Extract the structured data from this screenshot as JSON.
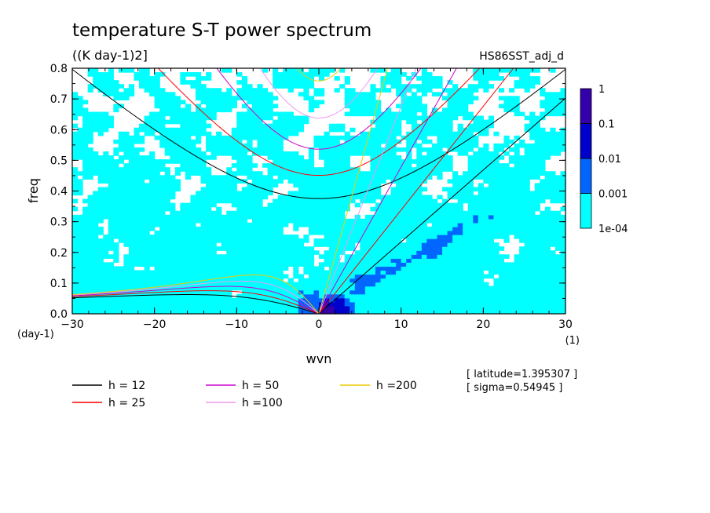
{
  "chart_data": {
    "type": "heatmap",
    "title": "temperature S-T power spectrum",
    "subtitle": "((K day-1)2]",
    "dataset_label": "HS86SST_adj_d",
    "xlabel": "wvn",
    "ylabel": "freq",
    "x_unit": "(1)",
    "y_unit": "(day-1)",
    "xlim": [
      -30,
      30
    ],
    "ylim": [
      0,
      0.8
    ],
    "xticks": [
      -30,
      -20,
      -10,
      0,
      10,
      20,
      30
    ],
    "yticks": [
      0,
      0.1,
      0.2,
      0.3,
      0.4,
      0.5,
      0.6,
      0.7,
      0.8
    ],
    "ytick_labels": [
      "0.0",
      "0.1",
      "0.2",
      "0.3",
      "0.4",
      "0.5",
      "0.6",
      "0.7",
      "0.8"
    ],
    "colorbar": {
      "levels": [
        "1e-04",
        "0.001",
        "0.01",
        "0.1",
        "1"
      ],
      "colors": [
        "#00ffff",
        "#0066ff",
        "#0000cc",
        "#3300aa"
      ]
    },
    "background_color": "#ffffff",
    "dispersion_curves": [
      {
        "label": "h = 12",
        "color": "#000000",
        "h": 12
      },
      {
        "label": "h = 25",
        "color": "#ff0000",
        "h": 25
      },
      {
        "label": "h = 50",
        "color": "#cc00cc",
        "h": 50
      },
      {
        "label": "h =100",
        "color": "#ee99ee",
        "h": 100
      },
      {
        "label": "h =200",
        "color": "#eecc00",
        "h": 200
      }
    ],
    "annotations": {
      "latitude": "[ latitude=1.395307 ]",
      "sigma": "[ sigma=0.54945 ]"
    }
  }
}
